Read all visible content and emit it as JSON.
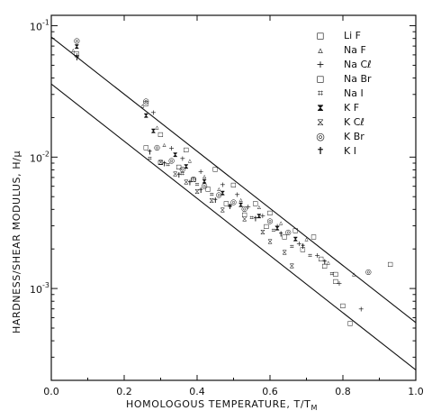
{
  "chart_data": {
    "type": "scatter",
    "xlabel": "HOMOLOGOUS TEMPERATURE, T/T",
    "xlabel_sub": "M",
    "ylabel": "HARDNESS/SHEAR MODULUS, H/μ",
    "xlim": [
      0.0,
      1.0
    ],
    "ylim": [
      0.0002,
      0.12
    ],
    "yscale": "log",
    "xticks": [
      "0.0",
      "0.2",
      "0.4",
      "0.6",
      "0.8",
      "1.0"
    ],
    "yticks": [
      {
        "base": "10",
        "exp": "-1",
        "value": 0.1
      },
      {
        "base": "10",
        "exp": "-2",
        "value": 0.01
      },
      {
        "base": "10",
        "exp": "-3",
        "value": 0.001
      }
    ],
    "legend_position": "top-right",
    "band_lines": [
      {
        "x": [
          0.0,
          1.0
        ],
        "y": [
          0.082,
          0.00055
        ]
      },
      {
        "x": [
          0.0,
          1.0
        ],
        "y": [
          0.036,
          0.00024
        ]
      }
    ],
    "series": [
      {
        "name": "Li F",
        "symbol": "◻",
        "points": [
          [
            0.07,
            0.062
          ],
          [
            0.26,
            0.026
          ],
          [
            0.3,
            0.015
          ],
          [
            0.37,
            0.0115
          ],
          [
            0.45,
            0.0082
          ],
          [
            0.5,
            0.0062
          ],
          [
            0.56,
            0.0045
          ],
          [
            0.6,
            0.0038
          ],
          [
            0.67,
            0.0028
          ],
          [
            0.72,
            0.0025
          ],
          [
            0.74,
            0.0017
          ],
          [
            0.78,
            0.0013
          ],
          [
            0.8,
            0.00075
          ],
          [
            0.82,
            0.00055
          ],
          [
            0.93,
            0.00155
          ]
        ]
      },
      {
        "name": "Na F",
        "symbol": "▵",
        "points": [
          [
            0.06,
            0.066
          ],
          [
            0.25,
            0.025
          ],
          [
            0.29,
            0.017
          ],
          [
            0.31,
            0.0125
          ],
          [
            0.38,
            0.0095
          ],
          [
            0.42,
            0.0072
          ],
          [
            0.46,
            0.0058
          ],
          [
            0.52,
            0.0048
          ],
          [
            0.57,
            0.0042
          ],
          [
            0.63,
            0.0032
          ],
          [
            0.7,
            0.0024
          ],
          [
            0.76,
            0.0016
          ],
          [
            0.83,
            0.0013
          ]
        ]
      },
      {
        "name": "Na Cℓ",
        "symbol": "+",
        "points": [
          [
            0.07,
            0.06
          ],
          [
            0.28,
            0.022
          ],
          [
            0.33,
            0.0118
          ],
          [
            0.36,
            0.0098
          ],
          [
            0.41,
            0.0078
          ],
          [
            0.47,
            0.0062
          ],
          [
            0.51,
            0.0052
          ],
          [
            0.54,
            0.0042
          ],
          [
            0.58,
            0.0036
          ],
          [
            0.62,
            0.003
          ],
          [
            0.68,
            0.0022
          ],
          [
            0.73,
            0.0018
          ],
          [
            0.79,
            0.0011
          ],
          [
            0.85,
            0.0007
          ]
        ]
      },
      {
        "name": "Na Br",
        "symbol": "◻",
        "points": [
          [
            0.26,
            0.012
          ],
          [
            0.3,
            0.0092
          ],
          [
            0.35,
            0.0085
          ],
          [
            0.39,
            0.0068
          ],
          [
            0.43,
            0.0058
          ],
          [
            0.48,
            0.0045
          ],
          [
            0.53,
            0.0037
          ],
          [
            0.59,
            0.003
          ],
          [
            0.64,
            0.0025
          ],
          [
            0.69,
            0.002
          ],
          [
            0.75,
            0.0015
          ],
          [
            0.78,
            0.00115
          ]
        ]
      },
      {
        "name": "Na I",
        "symbol": "⌗",
        "points": [
          [
            0.27,
            0.0098
          ],
          [
            0.32,
            0.0088
          ],
          [
            0.36,
            0.0075
          ],
          [
            0.4,
            0.0062
          ],
          [
            0.44,
            0.0052
          ],
          [
            0.49,
            0.0043
          ],
          [
            0.55,
            0.0035
          ],
          [
            0.61,
            0.0028
          ],
          [
            0.66,
            0.0021
          ],
          [
            0.71,
            0.0018
          ],
          [
            0.77,
            0.0013
          ]
        ]
      },
      {
        "name": "K F",
        "symbol": "⧗",
        "points": [
          [
            0.07,
            0.07
          ],
          [
            0.26,
            0.021
          ],
          [
            0.28,
            0.016
          ],
          [
            0.34,
            0.0105
          ],
          [
            0.37,
            0.0086
          ],
          [
            0.42,
            0.0066
          ],
          [
            0.47,
            0.0054
          ],
          [
            0.52,
            0.0044
          ],
          [
            0.57,
            0.0036
          ],
          [
            0.62,
            0.0029
          ],
          [
            0.67,
            0.0024
          ]
        ]
      },
      {
        "name": "K Cℓ",
        "symbol": "⧖",
        "points": [
          [
            0.3,
            0.0092
          ],
          [
            0.34,
            0.0075
          ],
          [
            0.37,
            0.0065
          ],
          [
            0.4,
            0.0055
          ],
          [
            0.44,
            0.0047
          ],
          [
            0.47,
            0.004
          ],
          [
            0.53,
            0.0034
          ],
          [
            0.58,
            0.0027
          ],
          [
            0.6,
            0.0023
          ],
          [
            0.64,
            0.0019
          ],
          [
            0.66,
            0.0015
          ]
        ]
      },
      {
        "name": "K Br",
        "symbol": "◎",
        "points": [
          [
            0.07,
            0.078
          ],
          [
            0.26,
            0.027
          ],
          [
            0.29,
            0.012
          ],
          [
            0.33,
            0.0095
          ],
          [
            0.36,
            0.0082
          ],
          [
            0.39,
            0.0069
          ],
          [
            0.42,
            0.0061
          ],
          [
            0.46,
            0.0052
          ],
          [
            0.5,
            0.0046
          ],
          [
            0.53,
            0.0041
          ],
          [
            0.6,
            0.0033
          ],
          [
            0.65,
            0.0027
          ],
          [
            0.87,
            0.00135
          ]
        ]
      },
      {
        "name": "K I",
        "symbol": "✝",
        "points": [
          [
            0.07,
            0.057
          ],
          [
            0.27,
            0.011
          ],
          [
            0.31,
            0.0089
          ],
          [
            0.35,
            0.0073
          ],
          [
            0.38,
            0.0064
          ],
          [
            0.41,
            0.0056
          ],
          [
            0.45,
            0.0047
          ],
          [
            0.49,
            0.0042
          ],
          [
            0.56,
            0.0034
          ],
          [
            0.63,
            0.0026
          ],
          [
            0.69,
            0.0021
          ],
          [
            0.75,
            0.0016
          ]
        ]
      }
    ]
  }
}
